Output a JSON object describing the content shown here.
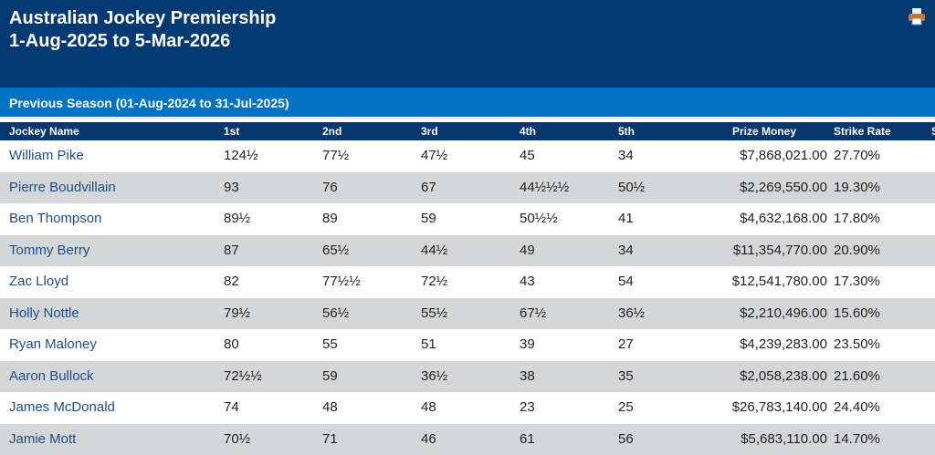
{
  "header": {
    "title_line1": "Australian Jockey Premiership",
    "title_line2": "1-Aug-2025 to 5-Mar-2026",
    "print_icon": "print-icon"
  },
  "section": {
    "label": "Previous Season (01-Aug-2024 to 31-Jul-2025)"
  },
  "columns": [
    "Jockey Name",
    "1st",
    "2nd",
    "3rd",
    "4th",
    "5th",
    "Prize Money",
    "Strike Rate",
    "S"
  ],
  "rows": [
    {
      "name": "William Pike",
      "first": "124½",
      "second": "77½",
      "third": "47½",
      "fourth": "45",
      "fifth": "34",
      "prize": "$7,868,021.00",
      "strike": "27.70%"
    },
    {
      "name": "Pierre Boudvillain",
      "first": "93",
      "second": "76",
      "third": "67",
      "fourth": "44½½½",
      "fifth": "50½",
      "prize": "$2,269,550.00",
      "strike": "19.30%"
    },
    {
      "name": "Ben Thompson",
      "first": "89½",
      "second": "89",
      "third": "59",
      "fourth": "50½½",
      "fifth": "41",
      "prize": "$4,632,168.00",
      "strike": "17.80%"
    },
    {
      "name": "Tommy Berry",
      "first": "87",
      "second": "65½",
      "third": "44½",
      "fourth": "49",
      "fifth": "34",
      "prize": "$11,354,770.00",
      "strike": "20.90%"
    },
    {
      "name": "Zac Lloyd",
      "first": "82",
      "second": "77½½",
      "third": "72½",
      "fourth": "43",
      "fifth": "54",
      "prize": "$12,541,780.00",
      "strike": "17.30%"
    },
    {
      "name": "Holly Nottle",
      "first": "79½",
      "second": "56½",
      "third": "55½",
      "fourth": "67½",
      "fifth": "36½",
      "prize": "$2,210,496.00",
      "strike": "15.60%"
    },
    {
      "name": "Ryan Maloney",
      "first": "80",
      "second": "55",
      "third": "51",
      "fourth": "39",
      "fifth": "27",
      "prize": "$4,239,283.00",
      "strike": "23.50%"
    },
    {
      "name": "Aaron Bullock",
      "first": "72½½",
      "second": "59",
      "third": "36½",
      "fourth": "38",
      "fifth": "35",
      "prize": "$2,058,238.00",
      "strike": "21.60%"
    },
    {
      "name": "James McDonald",
      "first": "74",
      "second": "48",
      "third": "48",
      "fourth": "23",
      "fifth": "25",
      "prize": "$26,783,140.00",
      "strike": "24.40%"
    },
    {
      "name": "Jamie Mott",
      "first": "70½",
      "second": "71",
      "third": "46",
      "fourth": "61",
      "fifth": "56",
      "prize": "$5,683,110.00",
      "strike": "14.70%"
    }
  ]
}
